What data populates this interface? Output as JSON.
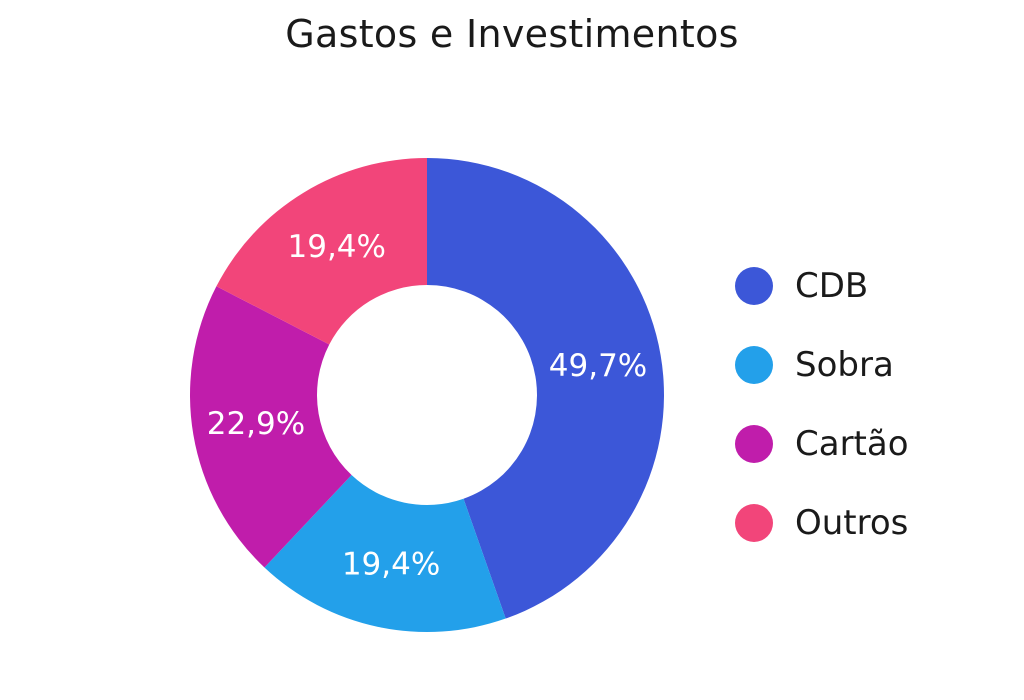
{
  "chart_data": {
    "type": "pie",
    "title": "Gastos e Investimentos",
    "donut": true,
    "categories": [
      "CDB",
      "Sobra",
      "Cartão",
      "Outros"
    ],
    "values": [
      49.7,
      19.4,
      22.9,
      19.4
    ],
    "value_labels": [
      "49,7%",
      "19,4%",
      "22,9%",
      "19,4%"
    ],
    "colors": [
      "#3C57D8",
      "#23A0EA",
      "#C01DAB",
      "#F2457A"
    ],
    "legend_position": "right",
    "start_angle": "top",
    "direction": "clockwise"
  }
}
